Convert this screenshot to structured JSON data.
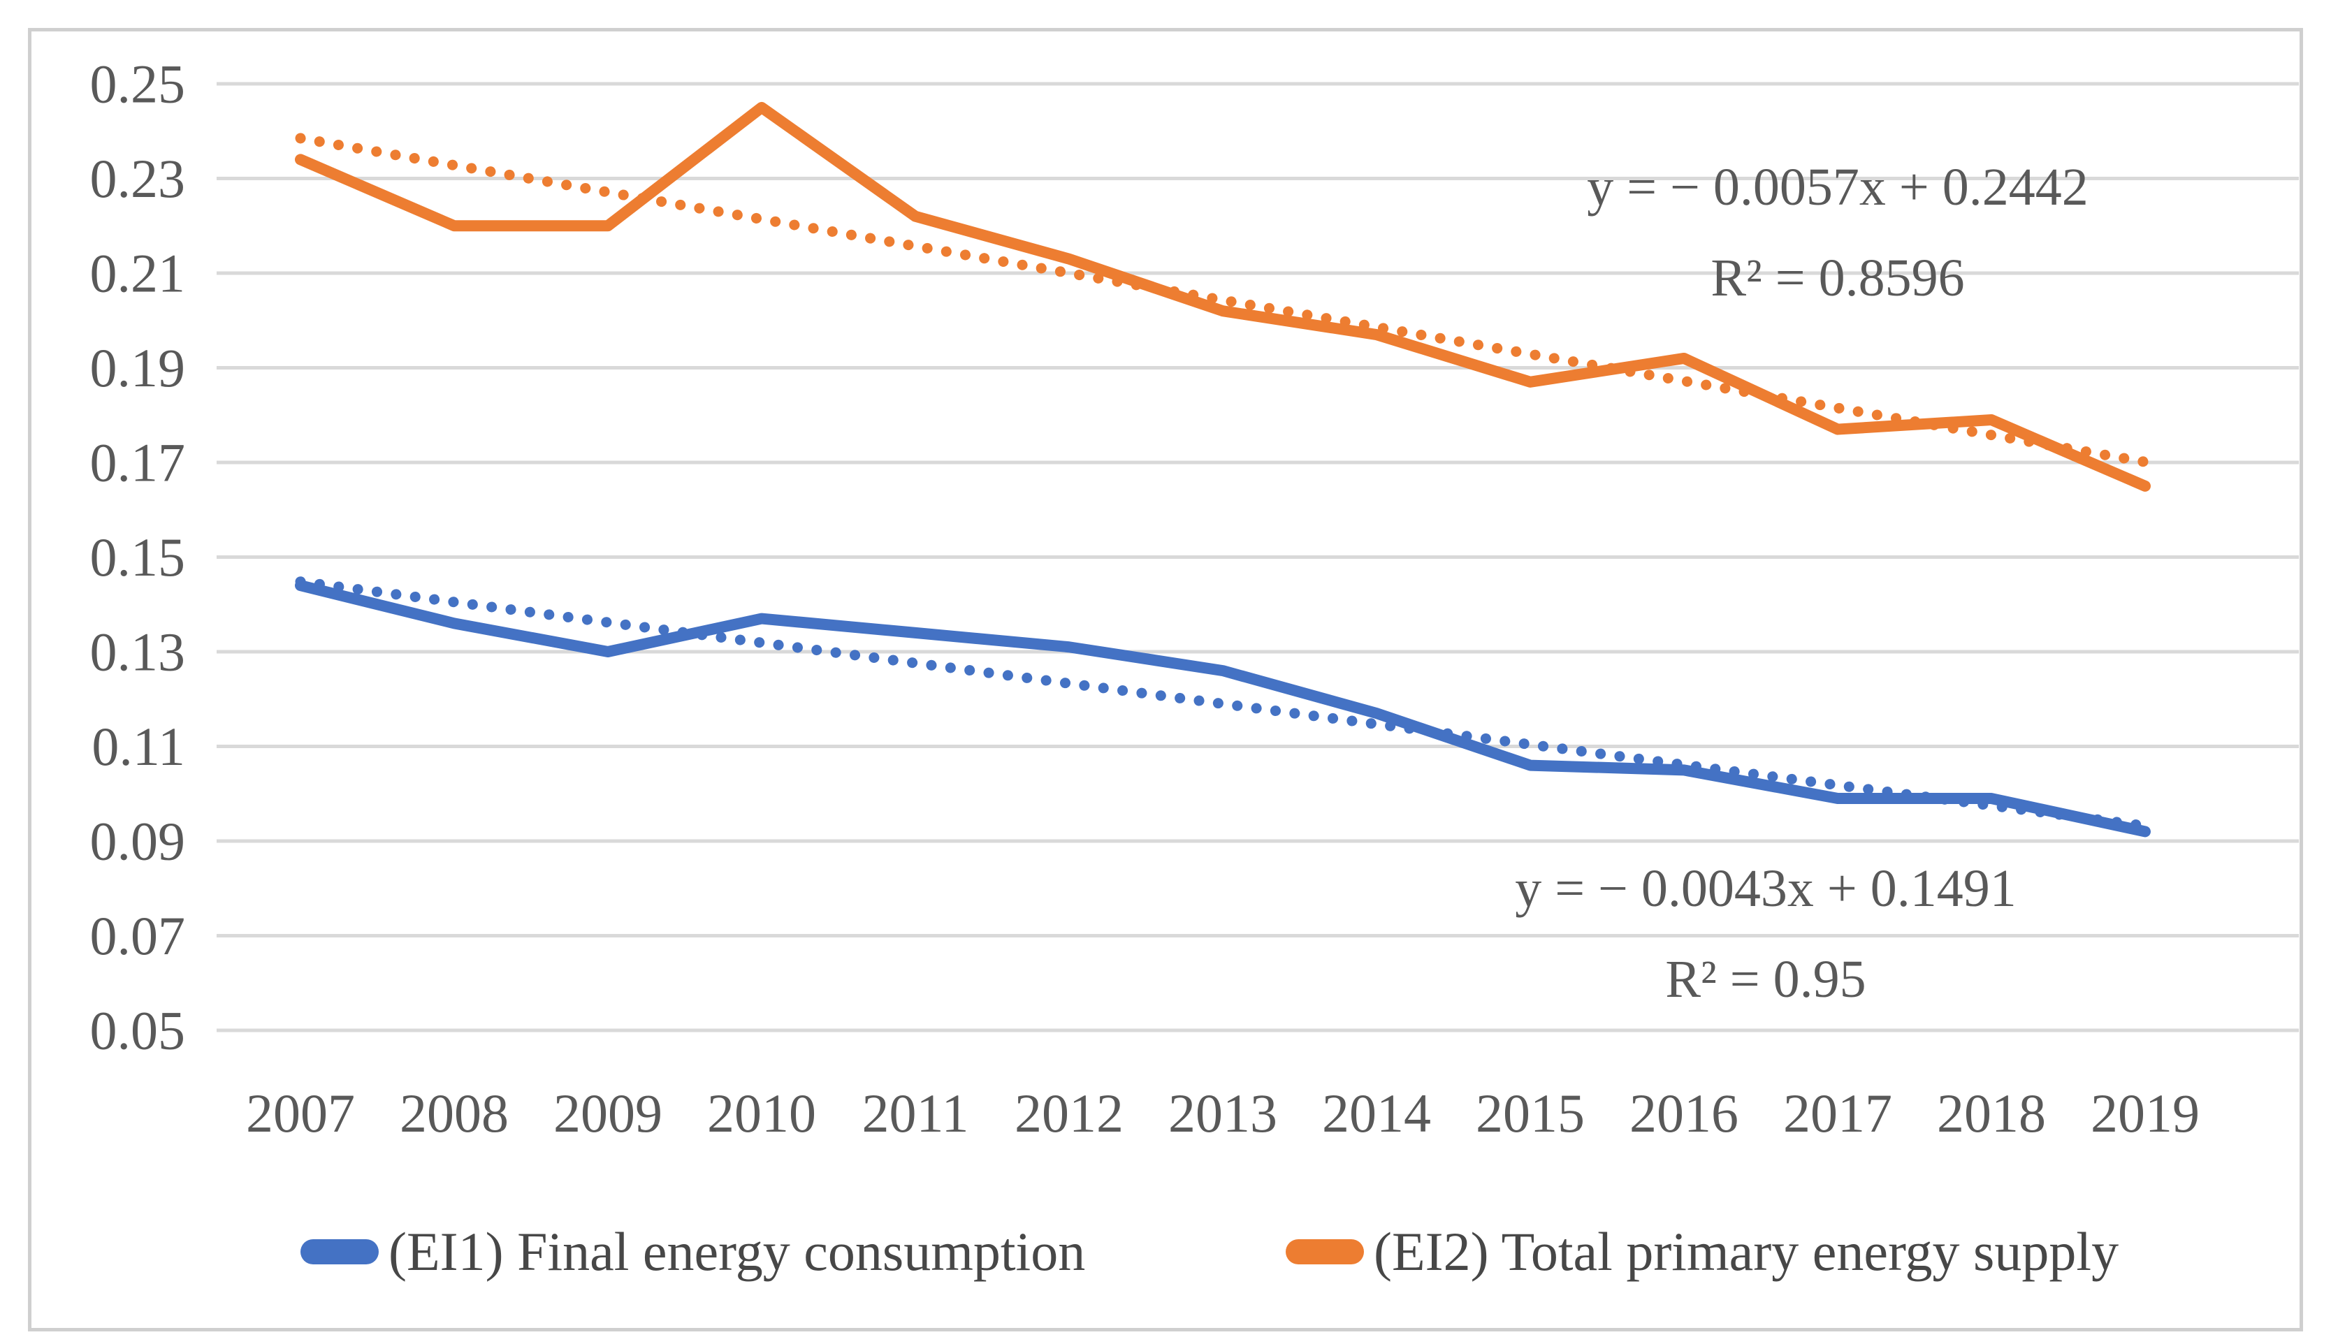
{
  "chart_data": {
    "type": "line",
    "title": "",
    "xlabel": "",
    "ylabel": "",
    "grid": true,
    "legend_position": "bottom",
    "ylim": [
      0.05,
      0.25
    ],
    "ytick_step": 0.02,
    "x": [
      2007,
      2008,
      2009,
      2010,
      2011,
      2012,
      2013,
      2014,
      2015,
      2016,
      2017,
      2018,
      2019
    ],
    "x_tick_labels": [
      "2007",
      "2008",
      "2009",
      "2010",
      "2011",
      "2012",
      "2013",
      "2014",
      "2015",
      "2016",
      "2017",
      "2018",
      "2019"
    ],
    "y_tick_labels": [
      "0.25",
      "0.23",
      "0.21",
      "0.19",
      "0.17",
      "0.15",
      "0.13",
      "0.11",
      "0.09",
      "0.07",
      "0.05"
    ],
    "series": [
      {
        "id": "ei1",
        "name": "(EI1) Final energy consumption",
        "color": "#4472C4",
        "style": "solid",
        "values": [
          0.144,
          0.136,
          0.13,
          0.137,
          0.134,
          0.131,
          0.126,
          0.117,
          0.106,
          0.105,
          0.099,
          0.099,
          0.092
        ],
        "trend": {
          "style": "dotted",
          "slope": -0.0043,
          "intercept": 0.1491,
          "r_squared": 0.95,
          "equation_label": "y = − 0.0043x + 0.1491",
          "r2_label": "R² = 0.95"
        }
      },
      {
        "id": "ei2",
        "name": "(EI2) Total primary energy supply",
        "color": "#ED7D31",
        "style": "solid",
        "values": [
          0.234,
          0.22,
          0.22,
          0.245,
          0.222,
          0.213,
          0.202,
          0.197,
          0.187,
          0.192,
          0.177,
          0.179,
          0.165
        ],
        "trend": {
          "style": "dotted",
          "slope": -0.0057,
          "intercept": 0.2442,
          "r_squared": 0.8596,
          "equation_label": "y = − 0.0057x + 0.2442",
          "r2_label": "R² = 0.8596"
        }
      }
    ],
    "colors": {
      "gridline": "#d9d9d9",
      "frame_border": "#cfcfcf",
      "tick_text": "#595959",
      "annotation_text": "#595959",
      "legend_text": "#474747"
    }
  }
}
